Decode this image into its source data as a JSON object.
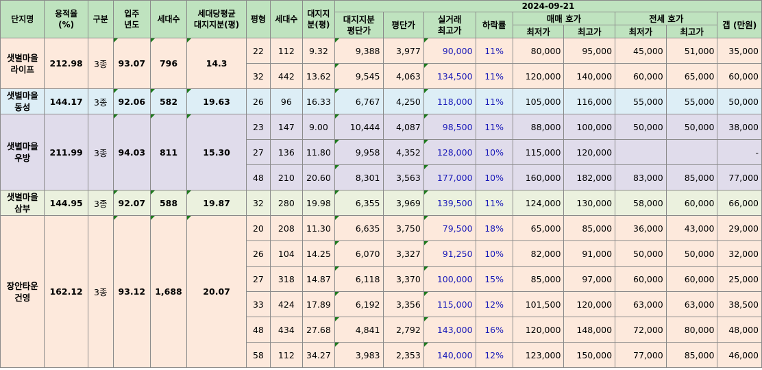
{
  "headers": {
    "complex": "단지명",
    "far_line1": "용적율",
    "far_line2": "(%)",
    "zone": "구분",
    "move_in_line1": "입주",
    "move_in_line2": "년도",
    "households": "세대수",
    "avg_land_line1": "세대당평균",
    "avg_land_line2": "대지지분(평)",
    "pyeong": "평형",
    "unit_households": "세대수",
    "land_share_line1": "대지지",
    "land_share_line2": "분(평)",
    "date": "2024-09-21",
    "land_price_line1": "대지지분",
    "land_price_line2": "평단가",
    "price_per_pyeong": "평단가",
    "max_deal_line1": "실거래",
    "max_deal_line2": "최고가",
    "drop_rate": "하락률",
    "sale_quote": "매매 호가",
    "jeonse_quote": "전세 호가",
    "min": "최저가",
    "max": "최고가",
    "gap": "갭 (만원)"
  },
  "groups": [
    {
      "name_line1": "샛별마을",
      "name_line2": "라이프",
      "far": "212.98",
      "zone": "3종",
      "move_in": "93.07",
      "households": "796",
      "avg_land": "14.3",
      "rows": [
        {
          "pyeong": "22",
          "hh": "112",
          "land": "9.32",
          "land_price": "9,388",
          "ppp": "3,977",
          "max_deal": "90,000",
          "drop": "11%",
          "sale_min": "80,000",
          "sale_max": "95,000",
          "jeonse_min": "45,000",
          "jeonse_max": "51,000",
          "gap": "35,000"
        },
        {
          "pyeong": "32",
          "hh": "442",
          "land": "13.62",
          "land_price": "9,545",
          "ppp": "4,063",
          "max_deal": "134,500",
          "drop": "11%",
          "sale_min": "120,000",
          "sale_max": "140,000",
          "jeonse_min": "60,000",
          "jeonse_max": "65,000",
          "gap": "60,000"
        }
      ]
    },
    {
      "name_line1": "샛별마을",
      "name_line2": "동성",
      "far": "144.17",
      "zone": "3종",
      "move_in": "92.06",
      "households": "582",
      "avg_land": "19.63",
      "rows": [
        {
          "pyeong": "26",
          "hh": "96",
          "land": "16.33",
          "land_price": "6,767",
          "ppp": "4,250",
          "max_deal": "118,000",
          "drop": "11%",
          "sale_min": "105,000",
          "sale_max": "116,000",
          "jeonse_min": "55,000",
          "jeonse_max": "55,000",
          "gap": "50,000"
        }
      ]
    },
    {
      "name_line1": "샛별마을",
      "name_line2": "우방",
      "far": "211.99",
      "zone": "3종",
      "move_in": "94.03",
      "households": "811",
      "avg_land": "15.30",
      "rows": [
        {
          "pyeong": "23",
          "hh": "147",
          "land": "9.00",
          "land_price": "10,444",
          "ppp": "4,087",
          "max_deal": "98,500",
          "drop": "11%",
          "sale_min": "88,000",
          "sale_max": "100,000",
          "jeonse_min": "50,000",
          "jeonse_max": "50,000",
          "gap": "38,000"
        },
        {
          "pyeong": "27",
          "hh": "136",
          "land": "11.80",
          "land_price": "9,958",
          "ppp": "4,352",
          "max_deal": "128,000",
          "drop": "10%",
          "sale_min": "115,000",
          "sale_max": "120,000",
          "jeonse_min": "",
          "jeonse_max": "",
          "gap": "-"
        },
        {
          "pyeong": "48",
          "hh": "210",
          "land": "20.60",
          "land_price": "8,301",
          "ppp": "3,563",
          "max_deal": "177,000",
          "drop": "10%",
          "sale_min": "160,000",
          "sale_max": "182,000",
          "jeonse_min": "83,000",
          "jeonse_max": "85,000",
          "gap": "77,000"
        }
      ]
    },
    {
      "name_line1": "샛별마을",
      "name_line2": "삼부",
      "far": "144.95",
      "zone": "3종",
      "move_in": "92.07",
      "households": "588",
      "avg_land": "19.87",
      "rows": [
        {
          "pyeong": "32",
          "hh": "280",
          "land": "19.98",
          "land_price": "6,355",
          "ppp": "3,969",
          "max_deal": "139,500",
          "drop": "11%",
          "sale_min": "124,000",
          "sale_max": "130,000",
          "jeonse_min": "58,000",
          "jeonse_max": "60,000",
          "gap": "66,000"
        }
      ]
    },
    {
      "name_line1": "장안타운",
      "name_line2": "건영",
      "far": "162.12",
      "zone": "3종",
      "move_in": "93.12",
      "households": "1,688",
      "avg_land": "20.07",
      "rows": [
        {
          "pyeong": "20",
          "hh": "208",
          "land": "11.30",
          "land_price": "6,635",
          "ppp": "3,750",
          "max_deal": "79,500",
          "drop": "18%",
          "sale_min": "65,000",
          "sale_max": "85,000",
          "jeonse_min": "36,000",
          "jeonse_max": "43,000",
          "gap": "29,000"
        },
        {
          "pyeong": "26",
          "hh": "104",
          "land": "14.25",
          "land_price": "6,070",
          "ppp": "3,327",
          "max_deal": "91,250",
          "drop": "10%",
          "sale_min": "82,000",
          "sale_max": "91,000",
          "jeonse_min": "50,000",
          "jeonse_max": "50,000",
          "gap": "32,000"
        },
        {
          "pyeong": "27",
          "hh": "318",
          "land": "14.87",
          "land_price": "6,118",
          "ppp": "3,370",
          "max_deal": "100,000",
          "drop": "15%",
          "sale_min": "85,000",
          "sale_max": "97,000",
          "jeonse_min": "60,000",
          "jeonse_max": "60,000",
          "gap": "25,000"
        },
        {
          "pyeong": "33",
          "hh": "424",
          "land": "17.89",
          "land_price": "6,192",
          "ppp": "3,356",
          "max_deal": "115,000",
          "drop": "12%",
          "sale_min": "101,500",
          "sale_max": "120,000",
          "jeonse_min": "63,000",
          "jeonse_max": "63,000",
          "gap": "38,500"
        },
        {
          "pyeong": "48",
          "hh": "434",
          "land": "27.68",
          "land_price": "4,841",
          "ppp": "2,792",
          "max_deal": "143,000",
          "drop": "16%",
          "sale_min": "120,000",
          "sale_max": "148,000",
          "jeonse_min": "72,000",
          "jeonse_max": "80,000",
          "gap": "48,000"
        },
        {
          "pyeong": "58",
          "hh": "112",
          "land": "34.27",
          "land_price": "3,983",
          "ppp": "2,353",
          "max_deal": "140,000",
          "drop": "12%",
          "sale_min": "123,000",
          "sale_max": "150,000",
          "jeonse_min": "77,000",
          "jeonse_max": "85,000",
          "gap": "46,000"
        }
      ]
    }
  ],
  "colors": {
    "header_bg": "#bfe3bf",
    "group_bg": [
      "#fde9dc",
      "#ddeef6",
      "#e0dceb",
      "#ebf1de",
      "#fde9dc"
    ],
    "highlight_text": "#1a1ab8"
  }
}
